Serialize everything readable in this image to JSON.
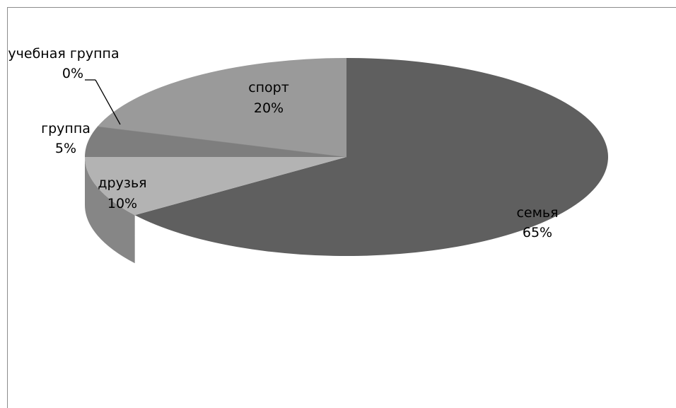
{
  "chart_data": {
    "type": "pie",
    "style": "3d",
    "slices": [
      {
        "label": "семья",
        "value": 65,
        "value_label": "65%",
        "color": "#5f5f5f"
      },
      {
        "label": "друзья",
        "value": 10,
        "value_label": "10%",
        "color": "#b3b3b3"
      },
      {
        "label": "группа",
        "value": 5,
        "value_label": "5%",
        "color": "#7e7e7e"
      },
      {
        "label": "учебная группа",
        "value": 0,
        "value_label": "0%",
        "color": "#8a8a8a"
      },
      {
        "label": "спорт",
        "value": 20,
        "value_label": "20%",
        "color": "#9a9a9a"
      }
    ],
    "title": "",
    "legend": "none"
  }
}
